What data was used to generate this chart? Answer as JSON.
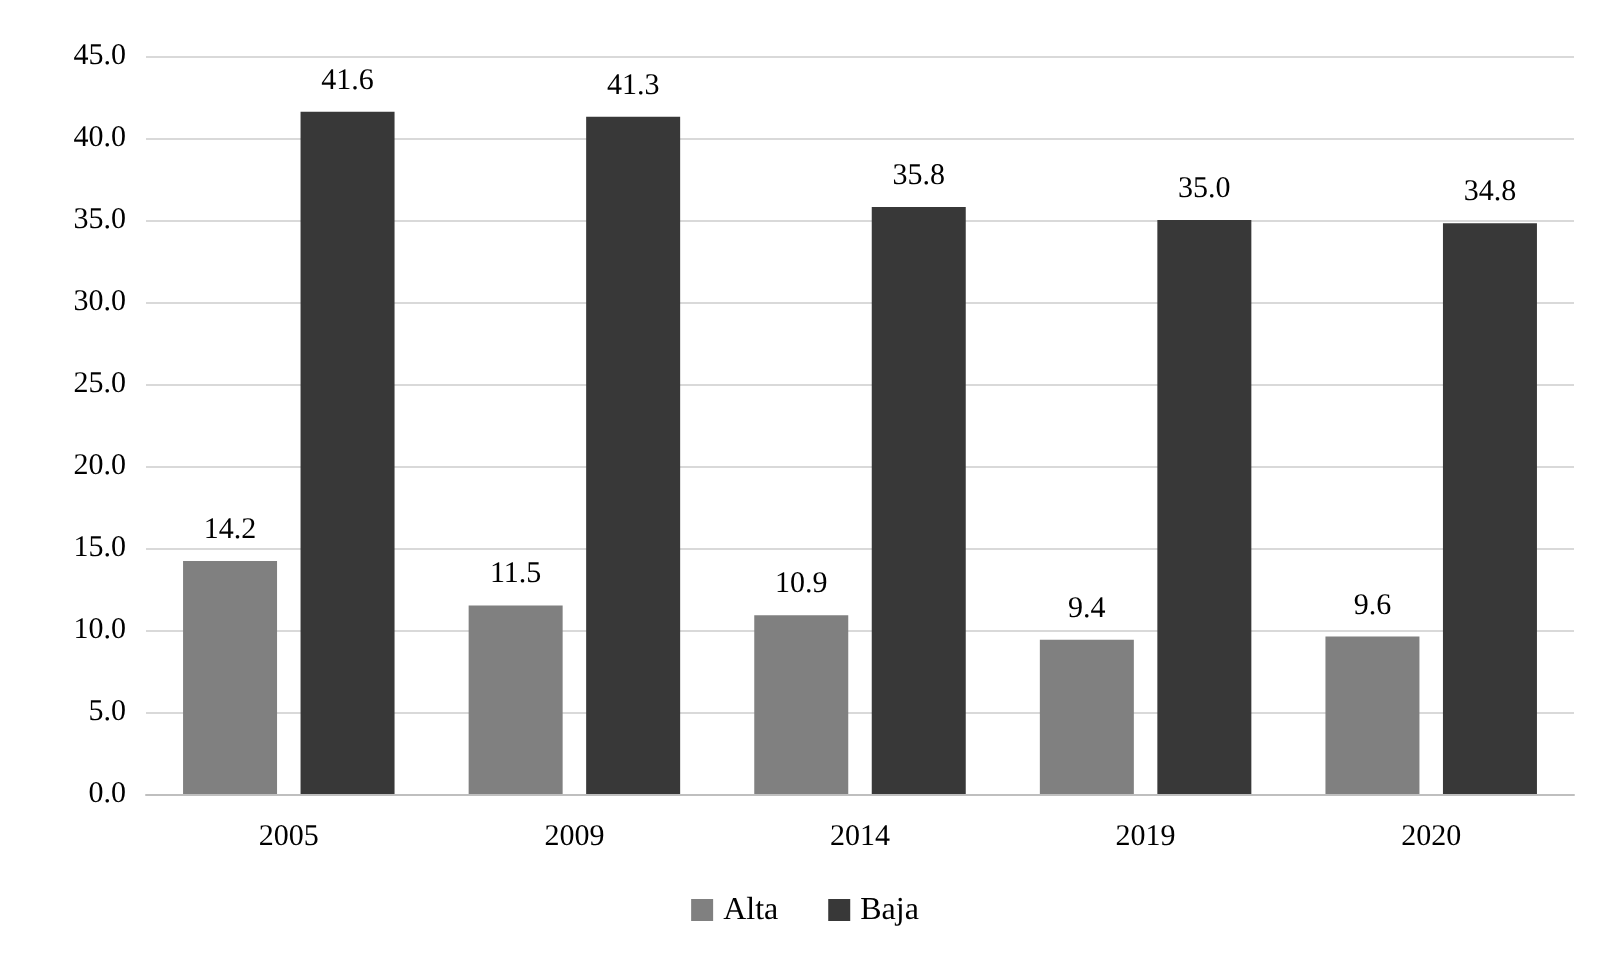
{
  "chart_data": {
    "type": "bar",
    "categories": [
      "2005",
      "2009",
      "2014",
      "2019",
      "2020"
    ],
    "series": [
      {
        "name": "Alta",
        "color": "#808080",
        "values": [
          14.2,
          11.5,
          10.9,
          9.4,
          9.6
        ],
        "value_labels": [
          "14.2",
          "11.5",
          "10.9",
          "9.4",
          "9.6"
        ]
      },
      {
        "name": "Baja",
        "color": "#383838",
        "values": [
          41.6,
          41.3,
          35.8,
          35.0,
          34.8
        ],
        "value_labels": [
          "41.6",
          "41.3",
          "35.8",
          "35.0",
          "34.8"
        ]
      }
    ],
    "ylim": [
      0,
      45
    ],
    "yticks": [
      {
        "value": 0,
        "label": "0.0"
      },
      {
        "value": 5,
        "label": "5.0"
      },
      {
        "value": 10,
        "label": "10.0"
      },
      {
        "value": 15,
        "label": "15.0"
      },
      {
        "value": 20,
        "label": "20.0"
      },
      {
        "value": 25,
        "label": "25.0"
      },
      {
        "value": 30,
        "label": "30.0"
      },
      {
        "value": 35,
        "label": "35.0"
      },
      {
        "value": 40,
        "label": "40.0"
      },
      {
        "value": 45,
        "label": "45.0"
      }
    ],
    "grid": "y",
    "legend": "bottom"
  }
}
